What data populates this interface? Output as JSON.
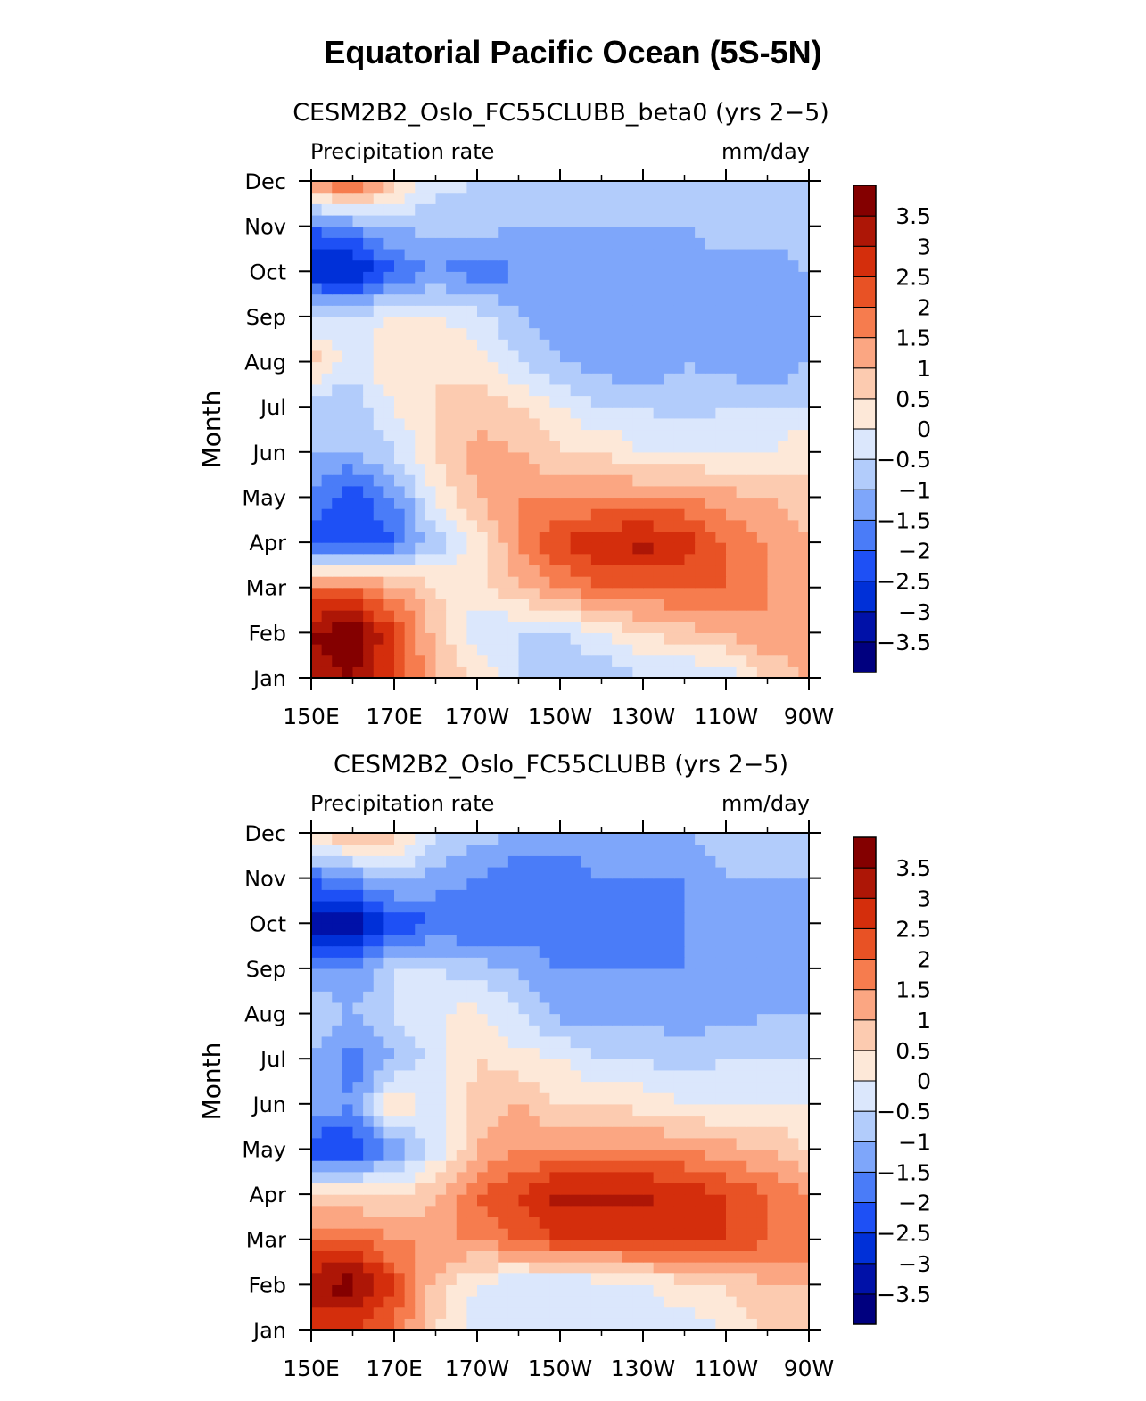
{
  "title": "Equatorial Pacific Ocean (5S-5N)",
  "colorbar": {
    "levels": [
      "-3.5",
      "-3",
      "-2.5",
      "-2",
      "-1.5",
      "-1",
      "-0.5",
      "0",
      "0.5",
      "1",
      "1.5",
      "2",
      "2.5",
      "3",
      "3.5"
    ],
    "colors": [
      "#00007f",
      "#0011a8",
      "#0030d8",
      "#1e50f5",
      "#4a7cf8",
      "#7ea6fa",
      "#b2ccfb",
      "#dbe7fc",
      "#fde8d8",
      "#fccbb0",
      "#fba682",
      "#f67c4e",
      "#e85225",
      "#d42e0c",
      "#ad1606",
      "#840000"
    ]
  },
  "chart_data": [
    {
      "type": "heatmap",
      "title": "CESM2B2_Oslo_FC55CLUBB_beta0 (yrs 2−5)",
      "left_label": "Precipitation rate",
      "right_label": "mm/day",
      "ylabel": "Month",
      "x_ticks": [
        "150E",
        "170E",
        "170W",
        "150W",
        "130W",
        "110W",
        "90W"
      ],
      "y_ticks": [
        "Jan",
        "Feb",
        "Mar",
        "Apr",
        "May",
        "Jun",
        "Jul",
        "Aug",
        "Sep",
        "Oct",
        "Nov",
        "Dec"
      ],
      "xlim": [
        "150E",
        "90W"
      ],
      "x_values": [
        "150E",
        "160E",
        "170E",
        "180",
        "170W",
        "160W",
        "150W",
        "140W",
        "130W",
        "120W",
        "110W",
        "100W",
        "90W"
      ],
      "rows": [
        [
          3.0,
          3.5,
          2.5,
          1.0,
          0.5,
          -0.5,
          -1.0,
          -1.0,
          -0.5,
          -0.5,
          -0.5,
          0.5,
          1.0
        ],
        [
          3.5,
          4.0,
          2.5,
          0.8,
          -0.3,
          -0.5,
          -0.5,
          0.0,
          0.5,
          0.8,
          1.0,
          1.5,
          1.5
        ],
        [
          2.0,
          2.0,
          1.2,
          0.5,
          0.2,
          1.0,
          1.5,
          2.0,
          2.0,
          2.0,
          2.0,
          1.5,
          1.0
        ],
        [
          -2.5,
          -2.5,
          -2.0,
          -0.8,
          0.2,
          1.5,
          2.5,
          3.0,
          3.2,
          2.8,
          2.0,
          1.5,
          1.0
        ],
        [
          -1.5,
          -2.5,
          -1.5,
          0.0,
          1.0,
          1.5,
          1.5,
          1.5,
          1.5,
          1.5,
          1.2,
          1.0,
          0.5
        ],
        [
          -1.0,
          -1.0,
          -0.5,
          0.5,
          1.2,
          1.0,
          0.5,
          0.5,
          0.0,
          0.0,
          0.0,
          0.0,
          0.5
        ],
        [
          -1.0,
          -0.8,
          0.0,
          0.5,
          0.8,
          0.5,
          0.0,
          -0.5,
          -0.5,
          -0.8,
          -0.5,
          -0.5,
          -0.5
        ],
        [
          0.8,
          -0.3,
          0.5,
          0.5,
          0.3,
          -0.5,
          -1.0,
          -1.2,
          -1.5,
          -1.0,
          -1.2,
          -1.5,
          -1.0
        ],
        [
          -0.5,
          -0.5,
          0.2,
          0.0,
          -0.3,
          -1.0,
          -1.2,
          -1.2,
          -1.5,
          -1.5,
          -1.5,
          -1.5,
          -1.0
        ],
        [
          -2.8,
          -3.2,
          -2.0,
          -1.5,
          -1.8,
          -1.5,
          -1.2,
          -1.2,
          -1.2,
          -1.2,
          -1.2,
          -1.2,
          -1.0
        ],
        [
          -2.0,
          -1.5,
          -1.0,
          -0.8,
          -0.8,
          -1.0,
          -1.0,
          -1.0,
          -1.0,
          -1.0,
          -0.8,
          -0.8,
          -0.8
        ],
        [
          1.5,
          2.5,
          0.8,
          -0.3,
          -0.5,
          -0.8,
          -1.0,
          -1.0,
          -1.0,
          -1.0,
          -0.8,
          -0.5,
          -0.5
        ]
      ]
    },
    {
      "type": "heatmap",
      "title": "CESM2B2_Oslo_FC55CLUBB (yrs 2−5)",
      "left_label": "Precipitation rate",
      "right_label": "mm/day",
      "ylabel": "Month",
      "x_ticks": [
        "150E",
        "170E",
        "170W",
        "150W",
        "130W",
        "110W",
        "90W"
      ],
      "y_ticks": [
        "Jan",
        "Feb",
        "Mar",
        "Apr",
        "May",
        "Jun",
        "Jul",
        "Aug",
        "Sep",
        "Oct",
        "Nov",
        "Dec"
      ],
      "xlim": [
        "150E",
        "90W"
      ],
      "x_values": [
        "150E",
        "160E",
        "170E",
        "180",
        "170W",
        "160W",
        "150W",
        "140W",
        "130W",
        "120W",
        "110W",
        "100W",
        "90W"
      ],
      "rows": [
        [
          2.5,
          2.5,
          2.0,
          0.5,
          -0.3,
          -0.5,
          -0.5,
          -0.3,
          -0.3,
          -0.3,
          0.0,
          0.5,
          0.5
        ],
        [
          3.5,
          3.8,
          2.5,
          0.8,
          0.0,
          -0.5,
          -0.5,
          -0.3,
          0.0,
          0.3,
          0.5,
          1.0,
          1.0
        ],
        [
          2.0,
          2.0,
          1.5,
          1.5,
          1.5,
          2.0,
          2.5,
          2.5,
          2.5,
          2.5,
          2.5,
          2.0,
          2.0
        ],
        [
          0.5,
          0.5,
          0.5,
          0.8,
          2.0,
          2.5,
          3.2,
          3.2,
          3.2,
          2.8,
          2.5,
          2.0,
          1.5
        ],
        [
          -2.5,
          -2.5,
          -1.5,
          -0.3,
          1.0,
          1.5,
          1.5,
          1.5,
          1.5,
          1.5,
          1.2,
          1.0,
          0.5
        ],
        [
          -1.0,
          -1.5,
          0.5,
          -0.3,
          0.8,
          1.0,
          0.5,
          0.5,
          0.3,
          0.0,
          0.0,
          0.0,
          0.0
        ],
        [
          -1.0,
          -1.8,
          -1.0,
          -0.3,
          0.5,
          0.2,
          0.0,
          -0.5,
          -0.5,
          -0.8,
          -0.5,
          -0.5,
          -0.5
        ],
        [
          -0.5,
          -1.0,
          -0.5,
          0.0,
          0.2,
          -0.5,
          -1.2,
          -1.2,
          -1.2,
          -1.2,
          -1.2,
          -1.0,
          -1.0
        ],
        [
          -1.5,
          -1.5,
          -0.5,
          -0.5,
          -0.8,
          -1.0,
          -1.5,
          -1.5,
          -1.5,
          -1.5,
          -1.5,
          -1.5,
          -1.2
        ],
        [
          -3.2,
          -3.5,
          -2.5,
          -2.0,
          -2.0,
          -2.0,
          -2.0,
          -2.0,
          -2.0,
          -1.5,
          -1.5,
          -1.5,
          -1.5
        ],
        [
          -2.0,
          -1.5,
          -0.8,
          -1.2,
          -1.5,
          -2.0,
          -2.0,
          -1.5,
          -1.5,
          -1.5,
          -1.0,
          -1.0,
          -1.0
        ],
        [
          0.5,
          1.2,
          0.8,
          -0.5,
          -0.8,
          -1.0,
          -1.0,
          -1.0,
          -1.0,
          -1.0,
          -0.8,
          -0.5,
          -0.5
        ]
      ]
    }
  ]
}
